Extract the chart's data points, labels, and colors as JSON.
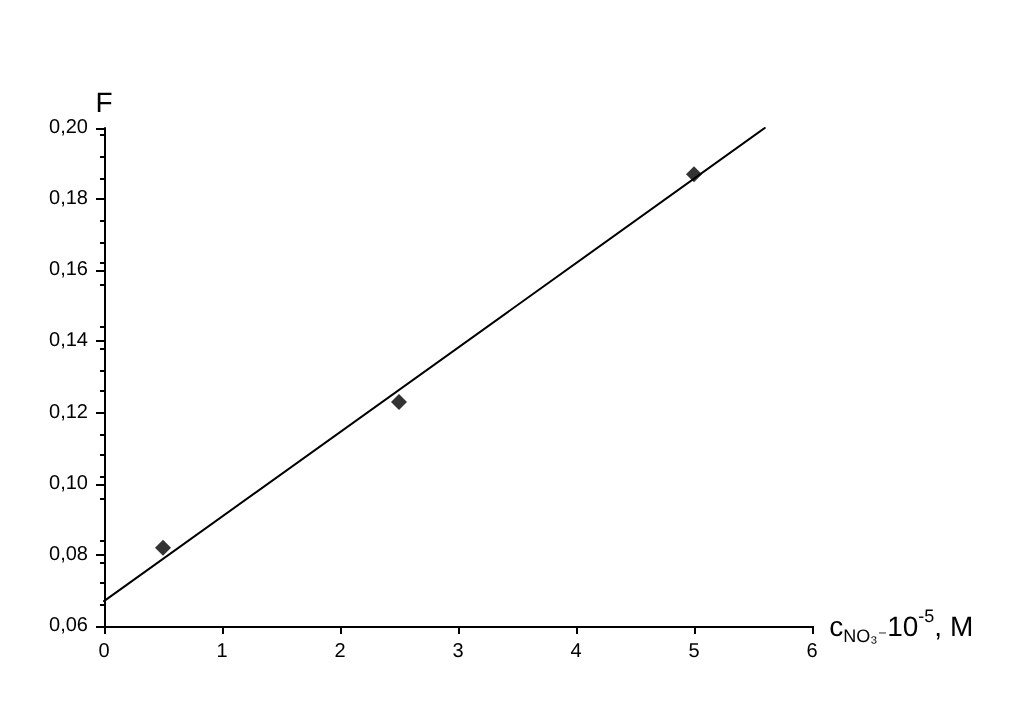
{
  "chart_data": {
    "type": "scatter",
    "xlabel": "c$_{NO₃⁻}$10$^{-5}$, M",
    "ylabel": "F",
    "xlim": [
      0,
      6
    ],
    "xticks": [
      0,
      1,
      2,
      3,
      4,
      5,
      6
    ],
    "ylim": [
      0.06,
      0.2
    ],
    "yticks": [
      {
        "value": 0.06,
        "label": "0,06"
      },
      {
        "value": 0.08,
        "label": "0,08"
      },
      {
        "value": 0.1,
        "label": "0,10"
      },
      {
        "value": 0.12,
        "label": "0,12"
      },
      {
        "value": 0.14,
        "label": "0,14"
      },
      {
        "value": 0.16,
        "label": "0,16"
      },
      {
        "value": 0.18,
        "label": "0,18"
      },
      {
        "value": 0.2,
        "label": "0,20"
      }
    ],
    "grid": false,
    "marker": "diamond",
    "series": [
      {
        "color": "#000000",
        "x": [
          0.5,
          2.5,
          5
        ],
        "values": [
          0.082,
          0.123,
          0.187
        ]
      },
      {
        "type": "line",
        "color": "#000000",
        "marker": "none",
        "x": [
          0,
          5.6
        ],
        "values": [
          0.067,
          0.2
        ]
      }
    ]
  }
}
